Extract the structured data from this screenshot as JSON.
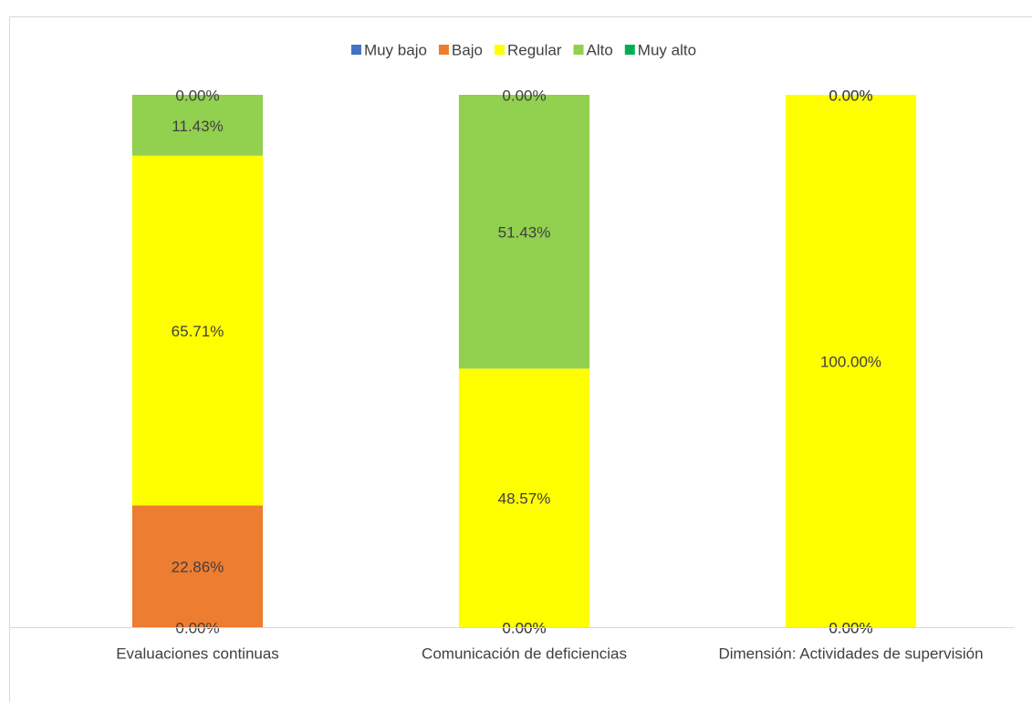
{
  "chart_data": {
    "type": "stacked_bar",
    "categories": [
      "Evaluaciones continuas",
      "Comunicación de deficiencias",
      "Dimensión: Actividades de supervisión"
    ],
    "series": [
      {
        "name": "Muy bajo",
        "color": "#4472c4",
        "values": [
          0,
          0,
          0
        ],
        "value_labels": [
          "0.00%",
          "0.00%",
          "0.00%"
        ]
      },
      {
        "name": "Bajo",
        "color": "#ed7d31",
        "values": [
          22.86,
          0,
          0
        ],
        "value_labels": [
          "22.86%",
          "0.00%",
          "0.00%"
        ]
      },
      {
        "name": "Regular",
        "color": "#ffff00",
        "values": [
          65.71,
          48.57,
          100
        ],
        "value_labels": [
          "65.71%",
          "48.57%",
          "100.00%"
        ]
      },
      {
        "name": "Alto",
        "color": "#92d050",
        "values": [
          11.43,
          51.43,
          0
        ],
        "value_labels": [
          "11.43%",
          "51.43%",
          "0.00%"
        ]
      },
      {
        "name": "Muy alto",
        "color": "#00b050",
        "values": [
          0,
          0,
          0
        ],
        "value_labels": [
          "0.00%",
          "0.00%",
          "0.00%"
        ]
      }
    ],
    "ylim": [
      0,
      100
    ],
    "legend": "top"
  }
}
